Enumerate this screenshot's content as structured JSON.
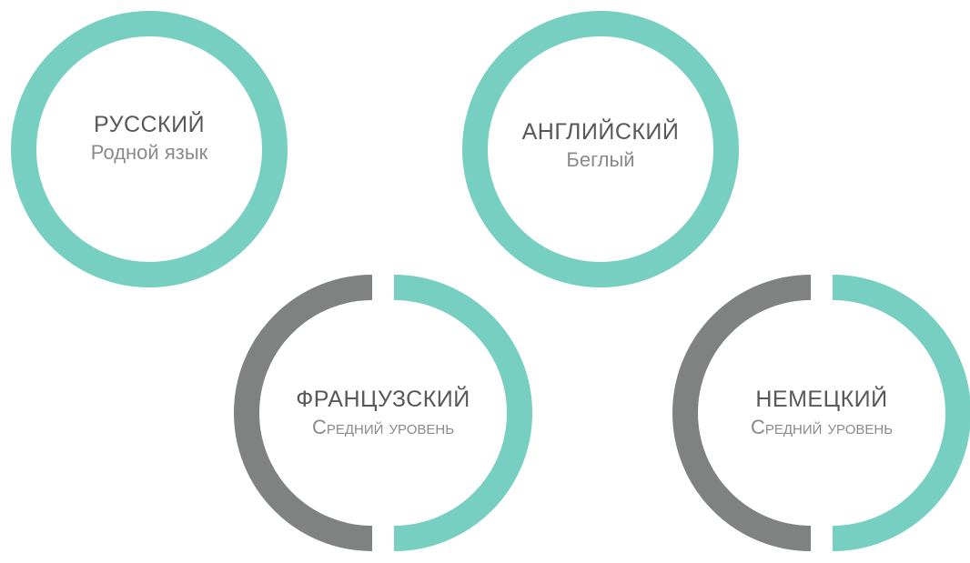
{
  "colors": {
    "accent": "#76cfc0",
    "muted": "#808181"
  },
  "languages": [
    {
      "name": "РУССКИЙ",
      "level": "Родной язык",
      "level_fraction": 1.0
    },
    {
      "name": "АНГЛИЙСКИЙ",
      "level": "Беглый",
      "level_fraction": 1.0
    },
    {
      "name": "ФРАНЦУЗСКИЙ",
      "level": "Средний уровень",
      "level_fraction": 0.5
    },
    {
      "name": "НЕМЕЦКИЙ",
      "level": "Средний уровень",
      "level_fraction": 0.5
    }
  ]
}
